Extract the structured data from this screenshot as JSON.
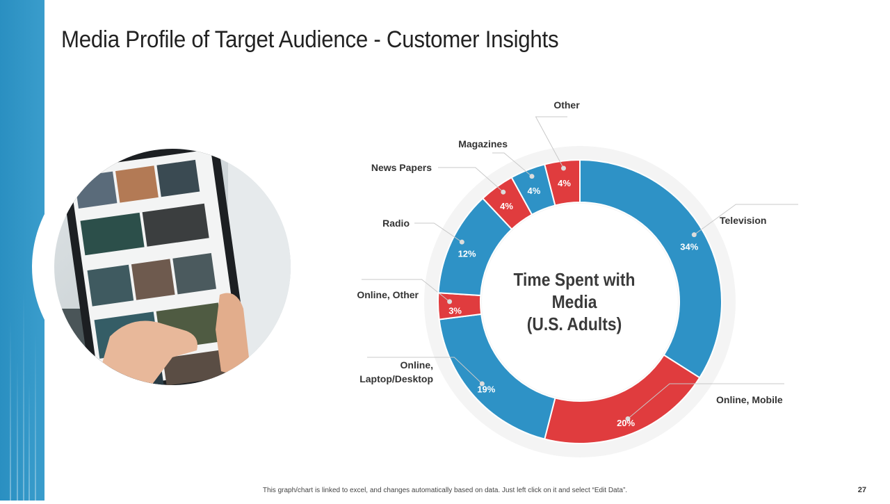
{
  "slide": {
    "title": "Media Profile of Target Audience - Customer Insights",
    "footer_note": "This graph/chart is linked to excel, and changes automatically  based on data. Just left click on it and select “Edit Data”.",
    "page_number": "27"
  },
  "colors": {
    "blue": "#2e92c6",
    "red": "#e03c3e",
    "sidebar": "#2a8fc1"
  },
  "chart_data": {
    "type": "pie",
    "variant": "donut",
    "title_lines": [
      "Time Spent with",
      "Media",
      "(U.S. Adults)"
    ],
    "slices": [
      {
        "label": "Television",
        "value": 34,
        "display": "34%",
        "color": "#2e92c6"
      },
      {
        "label": "Online, Mobile",
        "value": 20,
        "display": "20%",
        "color": "#e03c3e"
      },
      {
        "label": "Online, Laptop/Desktop",
        "label_lines": [
          "Online,",
          "Laptop/Desktop"
        ],
        "value": 19,
        "display": "19%",
        "color": "#2e92c6"
      },
      {
        "label": "Online, Other",
        "value": 3,
        "display": "3%",
        "color": "#e03c3e"
      },
      {
        "label": "Radio",
        "value": 12,
        "display": "12%",
        "color": "#2e92c6"
      },
      {
        "label": "News Papers",
        "value": 4,
        "display": "4%",
        "color": "#e03c3e"
      },
      {
        "label": "Magazines",
        "value": 4,
        "display": "4%",
        "color": "#2e92c6"
      },
      {
        "label": "Other",
        "value": 4,
        "display": "4%",
        "color": "#e03c3e"
      }
    ]
  }
}
